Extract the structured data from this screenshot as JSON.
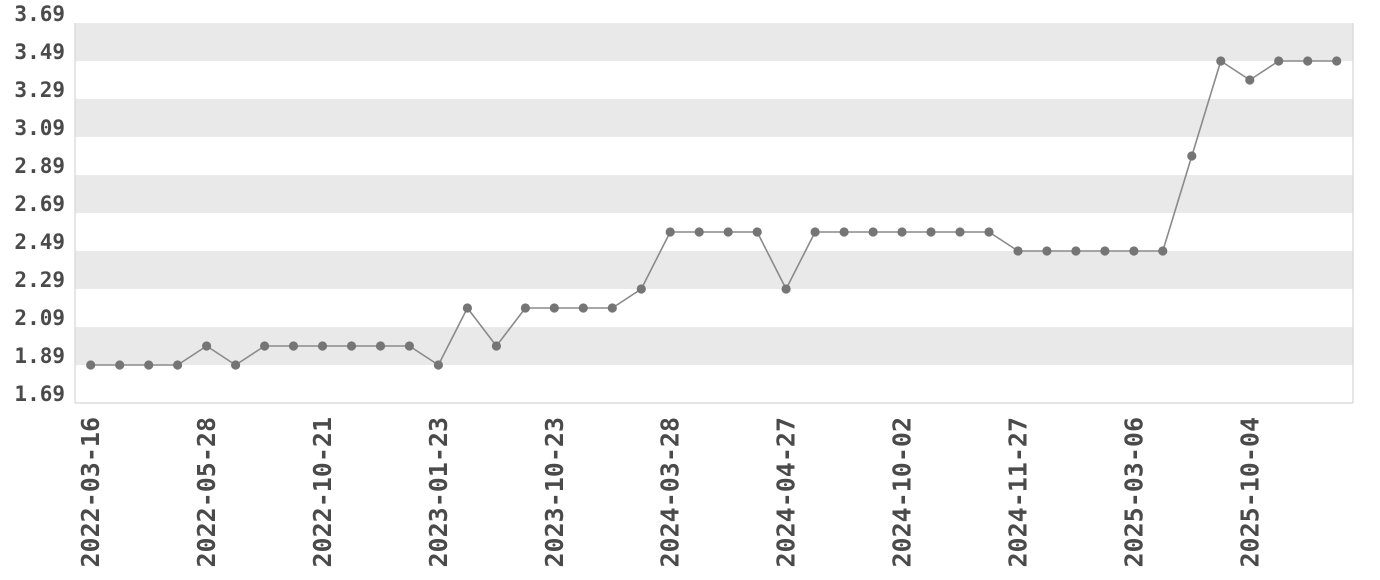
{
  "chart_data": {
    "type": "line",
    "title": "",
    "legend": "none",
    "grid": "alternating-horizontal-bands",
    "num_points": 44,
    "values": [
      1.89,
      1.89,
      1.89,
      1.89,
      1.99,
      1.89,
      1.99,
      1.99,
      1.99,
      1.99,
      1.99,
      1.99,
      1.89,
      2.19,
      1.99,
      2.19,
      2.19,
      2.19,
      2.19,
      2.29,
      2.59,
      2.59,
      2.59,
      2.59,
      2.29,
      2.59,
      2.59,
      2.59,
      2.59,
      2.59,
      2.59,
      2.59,
      2.49,
      2.49,
      2.49,
      2.49,
      2.49,
      2.49,
      2.99,
      3.49,
      3.39,
      3.49,
      3.49,
      3.49
    ],
    "x_tick_labels": [
      "2022-03-16",
      "2022-05-28",
      "2022-10-21",
      "2023-01-23",
      "2023-10-23",
      "2024-03-28",
      "2024-04-27",
      "2024-10-02",
      "2024-11-27",
      "2025-03-06",
      "2025-10-04"
    ],
    "x_tick_every": 4,
    "y_tick_labels": [
      "3.69",
      "3.49",
      "3.29",
      "3.09",
      "2.89",
      "2.69",
      "2.49",
      "2.29",
      "2.09",
      "1.89",
      "1.69"
    ],
    "ylim": [
      1.69,
      3.69
    ],
    "y_step": 0.2,
    "colors": {
      "background": "#ffffff",
      "band_gray": "#e9e9e9",
      "line": "#8a8a8a",
      "point": "#757575",
      "axis_text": "#4a4a4a",
      "border": "#d6d6d6"
    }
  }
}
